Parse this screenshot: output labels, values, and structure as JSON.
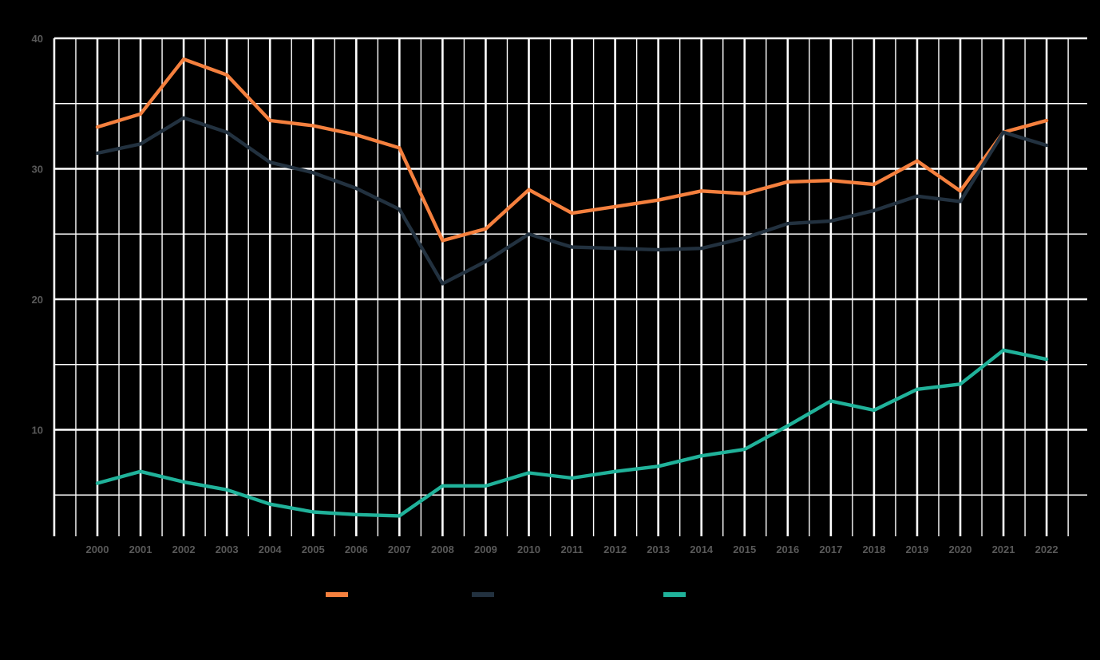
{
  "chart_data": {
    "type": "line",
    "title": "",
    "xlabel": "",
    "ylabel": "",
    "x": [
      "2000",
      "2001",
      "2002",
      "2003",
      "2004",
      "2005",
      "2006",
      "2007",
      "2008",
      "2009",
      "2010",
      "2011",
      "2012",
      "2013",
      "2014",
      "2015",
      "2016",
      "2017",
      "2018",
      "2019",
      "2020",
      "2021",
      "2022"
    ],
    "ylim": [
      0,
      40
    ],
    "yticks": [
      "10",
      "20",
      "30",
      "40"
    ],
    "grid": true,
    "legend": "bottom",
    "series": [
      {
        "color": "#f5803e",
        "values": [
          33.2,
          34.2,
          38.4,
          37.2,
          33.7,
          33.3,
          32.6,
          31.6,
          24.5,
          25.4,
          28.4,
          26.6,
          27.1,
          27.6,
          28.3,
          28.1,
          29.0,
          29.1,
          28.8,
          30.6,
          28.3,
          32.8,
          33.7
        ]
      },
      {
        "color": "#22313f",
        "values": [
          31.2,
          31.9,
          33.9,
          32.8,
          30.5,
          29.7,
          28.5,
          26.9,
          21.2,
          22.9,
          25.0,
          24.0,
          23.9,
          23.8,
          23.9,
          24.7,
          25.8,
          26.0,
          26.8,
          27.9,
          27.5,
          32.8,
          31.8
        ]
      },
      {
        "color": "#20b29a",
        "values": [
          5.9,
          6.8,
          6.0,
          5.4,
          4.3,
          3.7,
          3.5,
          3.4,
          5.7,
          5.7,
          6.7,
          6.3,
          6.8,
          7.2,
          8.0,
          8.5,
          10.3,
          12.2,
          11.5,
          13.1,
          13.5,
          16.1,
          15.4
        ]
      }
    ]
  }
}
